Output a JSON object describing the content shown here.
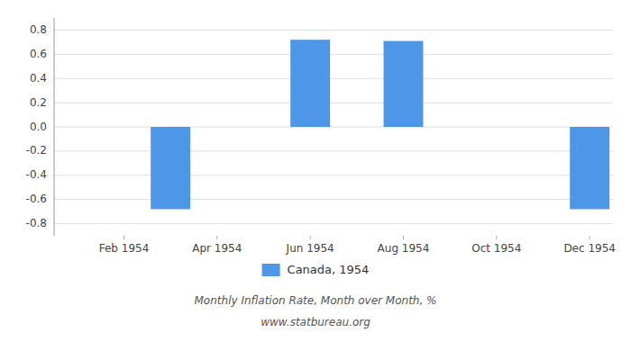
{
  "chart_data": {
    "type": "bar",
    "subtitle": "Monthly Inflation Rate, Month over Month, %",
    "annotations": [
      "www.statbureau.org"
    ],
    "categories": [
      null,
      "Feb 1954",
      null,
      "Apr 1954",
      null,
      "Jun 1954",
      null,
      "Aug 1954",
      null,
      "Oct 1954",
      null,
      "Dec 1954"
    ],
    "series": [
      {
        "name": "Canada, 1954",
        "color": "#4d96e8",
        "values": [
          0.0,
          0.0,
          -0.68,
          0.0,
          0.0,
          0.72,
          0.0,
          0.71,
          0.0,
          0.0,
          0.0,
          -0.68
        ]
      }
    ],
    "ylim": [
      -0.9,
      0.9
    ],
    "yticks": [
      -0.8,
      -0.6,
      -0.4,
      -0.2,
      {
        "value": 0.0,
        "label": "0.0"
      },
      0.2,
      0.4,
      0.6,
      0.8
    ],
    "grid": true,
    "legend": "bottom"
  }
}
